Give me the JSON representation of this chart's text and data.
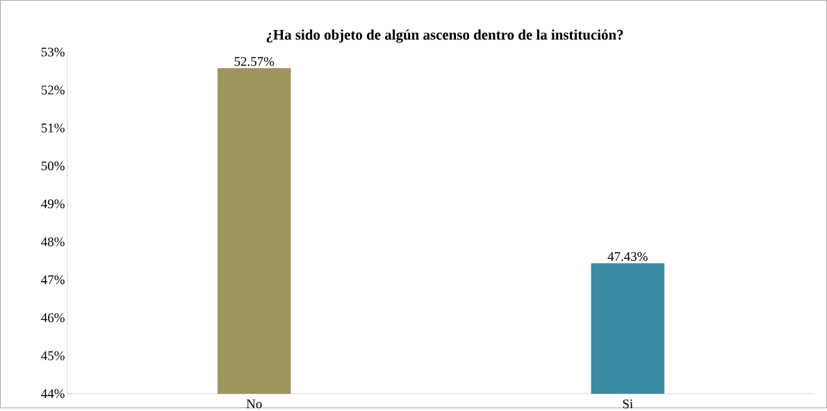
{
  "chart_data": {
    "type": "bar",
    "title": "¿Ha sido objeto de algún ascenso dentro de la institución?",
    "categories": [
      "No",
      "Si"
    ],
    "values": [
      52.57,
      47.43
    ],
    "colors": [
      "#9e955e",
      "#3a8ca3"
    ],
    "value_labels": [
      "52.57%",
      "47.43%"
    ],
    "ylim": [
      44,
      53
    ],
    "yticks": [
      {
        "value": 44,
        "label": "44%"
      },
      {
        "value": 45,
        "label": "45%"
      },
      {
        "value": 46,
        "label": "46%"
      },
      {
        "value": 47,
        "label": "47%"
      },
      {
        "value": 48,
        "label": "48%"
      },
      {
        "value": 49,
        "label": "49%"
      },
      {
        "value": 50,
        "label": "50%"
      },
      {
        "value": 51,
        "label": "51%"
      },
      {
        "value": 52,
        "label": "52%"
      },
      {
        "value": 53,
        "label": "53%"
      }
    ],
    "grid": false
  }
}
